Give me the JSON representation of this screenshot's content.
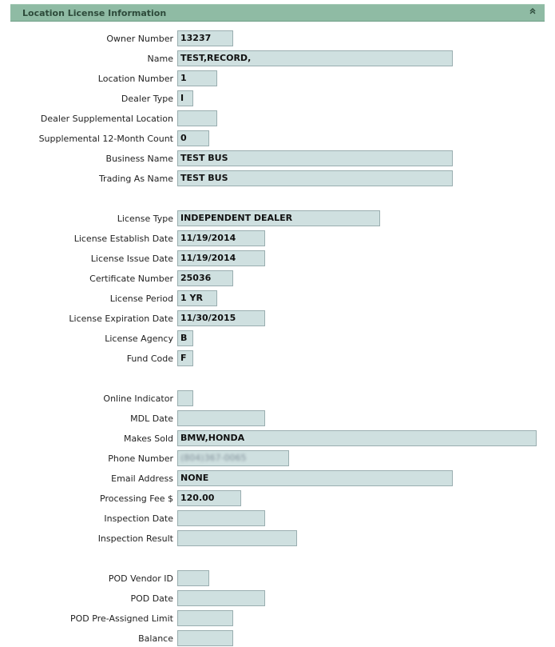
{
  "panel": {
    "title": "Location License Information",
    "collapse_icon": "double-chevron-up-icon"
  },
  "fields": {
    "owner_number": {
      "label": "Owner Number",
      "value": "13237"
    },
    "name": {
      "label": "Name",
      "value": "TEST,RECORD,"
    },
    "location_number": {
      "label": "Location Number",
      "value": "1"
    },
    "dealer_type": {
      "label": "Dealer Type",
      "value": "I"
    },
    "dealer_supplemental_location": {
      "label": "Dealer Supplemental Location",
      "value": ""
    },
    "supplemental_12_month_count": {
      "label": "Supplemental 12-Month Count",
      "value": "0"
    },
    "business_name": {
      "label": "Business Name",
      "value": "TEST BUS"
    },
    "trading_as_name": {
      "label": "Trading As Name",
      "value": "TEST BUS"
    },
    "license_type": {
      "label": "License Type",
      "value": "INDEPENDENT DEALER"
    },
    "license_establish_date": {
      "label": "License Establish Date",
      "value": "11/19/2014"
    },
    "license_issue_date": {
      "label": "License Issue Date",
      "value": "11/19/2014"
    },
    "certificate_number": {
      "label": "Certificate Number",
      "value": "25036"
    },
    "license_period": {
      "label": "License Period",
      "value": "1 YR"
    },
    "license_expiration_date": {
      "label": "License Expiration Date",
      "value": "11/30/2015"
    },
    "license_agency": {
      "label": "License Agency",
      "value": "B"
    },
    "fund_code": {
      "label": "Fund Code",
      "value": "F"
    },
    "online_indicator": {
      "label": "Online Indicator",
      "value": ""
    },
    "mdl_date": {
      "label": "MDL Date",
      "value": ""
    },
    "makes_sold": {
      "label": "Makes Sold",
      "value": "BMW,HONDA"
    },
    "phone_number": {
      "label": "Phone Number",
      "value": "(804)367-0065"
    },
    "email_address": {
      "label": "Email Address",
      "value": "NONE"
    },
    "processing_fee": {
      "label": "Processing Fee $",
      "value": "120.00"
    },
    "inspection_date": {
      "label": "Inspection Date",
      "value": ""
    },
    "inspection_result": {
      "label": "Inspection Result",
      "value": ""
    },
    "pod_vendor_id": {
      "label": "POD Vendor ID",
      "value": ""
    },
    "pod_date": {
      "label": "POD Date",
      "value": ""
    },
    "pod_pre_assigned_limit": {
      "label": "POD Pre-Assigned Limit",
      "value": ""
    },
    "balance": {
      "label": "Balance",
      "value": ""
    }
  }
}
